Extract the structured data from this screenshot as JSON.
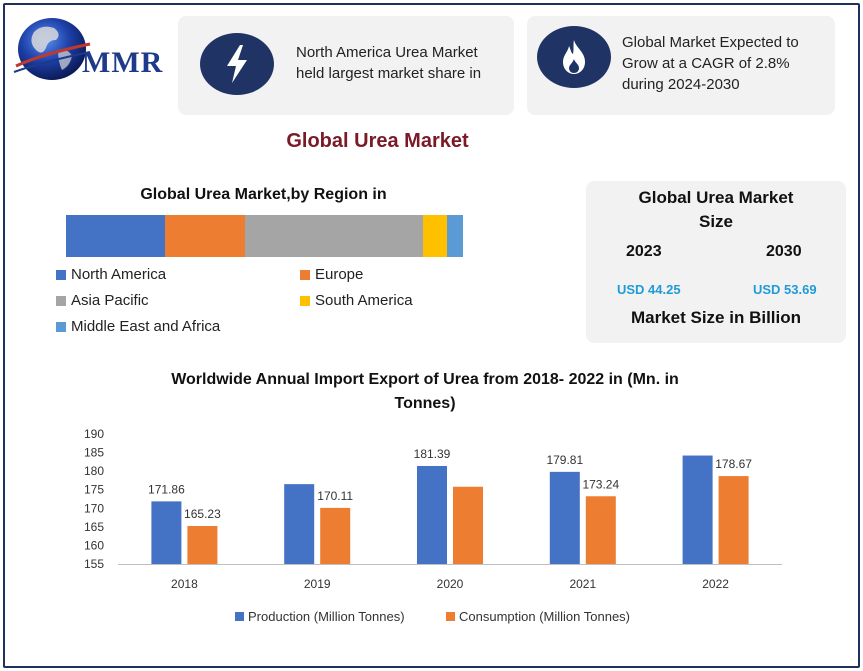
{
  "logo": {
    "text": "MMR"
  },
  "cards": [
    {
      "icon": "lightning-icon",
      "text": "North America Urea Market held largest market share in"
    },
    {
      "icon": "flame-icon",
      "text": "Global Market Expected to Grow at a CAGR of 2.8% during 2024-2030"
    }
  ],
  "title": "Global Urea Market",
  "colors": {
    "production": "#4472c4",
    "consumption": "#ed7d31",
    "accent_circle": "#1f3464",
    "title": "#7b1a26",
    "value_blue": "#1f9bd7"
  },
  "region": {
    "title": "Global Urea Market,by Region in",
    "segments": [
      {
        "name": "North America",
        "share": 0.25,
        "color": "#4472c4"
      },
      {
        "name": "Europe",
        "share": 0.2,
        "color": "#ed7d31"
      },
      {
        "name": "Asia Pacific",
        "share": 0.45,
        "color": "#a5a5a5"
      },
      {
        "name": "South America",
        "share": 0.06,
        "color": "#ffc000"
      },
      {
        "name": "Middle East and Africa",
        "share": 0.04,
        "color": "#5b9bd5"
      }
    ]
  },
  "size": {
    "title": "Global Urea Market Size",
    "year1": "2023",
    "year2": "2030",
    "value1": "USD 44.25",
    "value2": "USD 53.69",
    "footer": "Market Size in Billion"
  },
  "chart_title": "Worldwide Annual Import Export of Urea from 2018- 2022 in (Mn. in Tonnes)",
  "chart_data": {
    "type": "bar",
    "categories": [
      "2018",
      "2019",
      "2020",
      "2021",
      "2022"
    ],
    "ylim": [
      155,
      190
    ],
    "yticks": [
      155,
      160,
      165,
      170,
      175,
      180,
      185,
      190
    ],
    "series": [
      {
        "name": "Production (Million Tonnes)",
        "values": [
          171.86,
          176.5,
          181.39,
          179.81,
          184.2
        ],
        "labels": [
          "171.86",
          "",
          "181.39",
          "179.81",
          ""
        ],
        "color": "#4472c4"
      },
      {
        "name": "Consumption (Million Tonnes)",
        "values": [
          165.23,
          170.11,
          175.8,
          173.24,
          178.67
        ],
        "labels": [
          "165.23",
          "170.11",
          "",
          "173.24",
          "178.67"
        ],
        "color": "#ed7d31"
      }
    ]
  }
}
